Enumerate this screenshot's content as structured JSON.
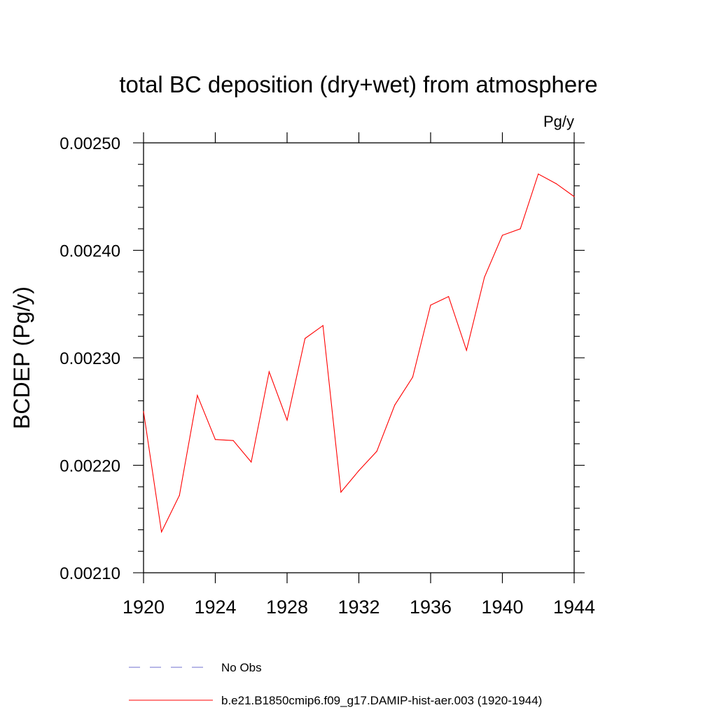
{
  "chart_data": {
    "type": "line",
    "title": "total BC deposition (dry+wet) from atmosphere",
    "units": "Pg/y",
    "ylabel": "BCDEP  (Pg/y)",
    "xlabel": "",
    "xlim": [
      1920,
      1944
    ],
    "ylim": [
      0.0021,
      0.0025
    ],
    "x_ticks": [
      "1920",
      "1924",
      "1928",
      "1932",
      "1936",
      "1940",
      "1944"
    ],
    "y_ticks": [
      "0.00210",
      "0.00220",
      "0.00230",
      "0.00240",
      "0.00250"
    ],
    "grid": false,
    "series": [
      {
        "name": "b.e21.B1850cmip6.f09_g17.DAMIP-hist-aer.003 (1920-1944)",
        "color": "#ff0000",
        "x": [
          1920,
          1921,
          1922,
          1923,
          1924,
          1925,
          1926,
          1927,
          1928,
          1929,
          1930,
          1931,
          1932,
          1933,
          1934,
          1935,
          1936,
          1937,
          1938,
          1939,
          1940,
          1941,
          1942,
          1943,
          1944
        ],
        "values": [
          0.00225,
          0.002138,
          0.002172,
          0.002265,
          0.002224,
          0.002223,
          0.002203,
          0.002287,
          0.002242,
          0.002318,
          0.00233,
          0.002175,
          0.002195,
          0.002213,
          0.002256,
          0.002282,
          0.002349,
          0.002357,
          0.002307,
          0.002375,
          0.002414,
          0.00242,
          0.002471,
          0.002462,
          0.00245
        ]
      }
    ],
    "legend": {
      "placement": "bottom",
      "entries": [
        {
          "label": "No Obs",
          "color": "#6f6fcf",
          "style": "dashed"
        },
        {
          "label": "b.e21.B1850cmip6.f09_g17.DAMIP-hist-aer.003 (1920-1944)",
          "color": "#ff0000",
          "style": "solid"
        }
      ]
    }
  }
}
